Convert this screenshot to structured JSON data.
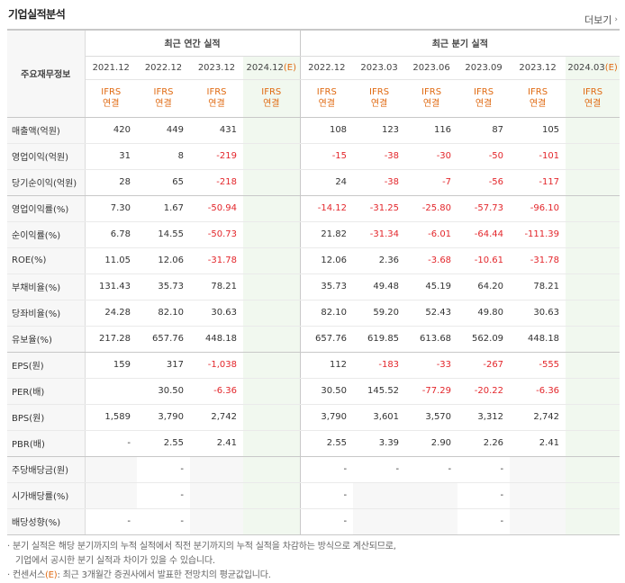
{
  "title": "기업실적분석",
  "more_label": "더보기",
  "header": {
    "row_label": "주요재무정보",
    "annual_label": "최근 연간 실적",
    "quarter_label": "최근 분기 실적",
    "annual_periods": [
      "2021.12",
      "2022.12",
      "2023.12",
      "2024.12"
    ],
    "annual_est_suffix": "(E)",
    "quarter_periods": [
      "2022.12",
      "2023.03",
      "2023.06",
      "2023.09",
      "2023.12",
      "2024.03"
    ],
    "quarter_est_suffix": "(E)",
    "ifrs_top": "IFRS",
    "ifrs_bottom": "연결"
  },
  "rows": [
    {
      "label": "매출액(억원)",
      "annual": [
        "420",
        "449",
        "431",
        ""
      ],
      "quarter": [
        "108",
        "123",
        "116",
        "87",
        "105",
        ""
      ]
    },
    {
      "label": "영업이익(억원)",
      "annual": [
        "31",
        "8",
        "-219",
        ""
      ],
      "quarter": [
        "-15",
        "-38",
        "-30",
        "-50",
        "-101",
        ""
      ]
    },
    {
      "label": "당기순이익(억원)",
      "annual": [
        "28",
        "65",
        "-218",
        ""
      ],
      "quarter": [
        "24",
        "-38",
        "-7",
        "-56",
        "-117",
        ""
      ]
    },
    {
      "label": "영업이익률(%)",
      "annual": [
        "7.30",
        "1.67",
        "-50.94",
        ""
      ],
      "quarter": [
        "-14.12",
        "-31.25",
        "-25.80",
        "-57.73",
        "-96.10",
        ""
      ]
    },
    {
      "label": "순이익률(%)",
      "annual": [
        "6.78",
        "14.55",
        "-50.73",
        ""
      ],
      "quarter": [
        "21.82",
        "-31.34",
        "-6.01",
        "-64.44",
        "-111.39",
        ""
      ]
    },
    {
      "label": "ROE(%)",
      "annual": [
        "11.05",
        "12.06",
        "-31.78",
        ""
      ],
      "quarter": [
        "12.06",
        "2.36",
        "-3.68",
        "-10.61",
        "-31.78",
        ""
      ]
    },
    {
      "label": "부채비율(%)",
      "annual": [
        "131.43",
        "35.73",
        "78.21",
        ""
      ],
      "quarter": [
        "35.73",
        "49.48",
        "45.19",
        "64.20",
        "78.21",
        ""
      ]
    },
    {
      "label": "당좌비율(%)",
      "annual": [
        "24.28",
        "82.10",
        "30.63",
        ""
      ],
      "quarter": [
        "82.10",
        "59.20",
        "52.43",
        "49.80",
        "30.63",
        ""
      ]
    },
    {
      "label": "유보율(%)",
      "annual": [
        "217.28",
        "657.76",
        "448.18",
        ""
      ],
      "quarter": [
        "657.76",
        "619.85",
        "613.68",
        "562.09",
        "448.18",
        ""
      ]
    },
    {
      "label": "EPS(원)",
      "annual": [
        "159",
        "317",
        "-1,038",
        ""
      ],
      "quarter": [
        "112",
        "-183",
        "-33",
        "-267",
        "-555",
        ""
      ]
    },
    {
      "label": "PER(배)",
      "annual": [
        "",
        "30.50",
        "-6.36",
        ""
      ],
      "quarter": [
        "30.50",
        "145.52",
        "-77.29",
        "-20.22",
        "-6.36",
        ""
      ]
    },
    {
      "label": "BPS(원)",
      "annual": [
        "1,589",
        "3,790",
        "2,742",
        ""
      ],
      "quarter": [
        "3,790",
        "3,601",
        "3,570",
        "3,312",
        "2,742",
        ""
      ]
    },
    {
      "label": "PBR(배)",
      "annual": [
        "-",
        "2.55",
        "2.41",
        ""
      ],
      "quarter": [
        "2.55",
        "3.39",
        "2.90",
        "2.26",
        "2.41",
        ""
      ]
    },
    {
      "label": "주당배당금(원)",
      "annual": [
        "",
        "-",
        "",
        ""
      ],
      "quarter": [
        "-",
        "-",
        "-",
        "-",
        "",
        ""
      ]
    },
    {
      "label": "시가배당률(%)",
      "annual": [
        "",
        "-",
        "",
        ""
      ],
      "quarter": [
        "-",
        "",
        "",
        "-",
        "",
        ""
      ]
    },
    {
      "label": "배당성향(%)",
      "annual": [
        "-",
        "-",
        "",
        ""
      ],
      "quarter": [
        "-",
        "",
        "",
        "-",
        "",
        ""
      ]
    }
  ],
  "notes": {
    "line1": "· 분기 실적은 해당 분기까지의 누적 실적에서 직전 분기까지의 누적 실적을 차감하는 방식으로 계산되므로,",
    "line2": "기업에서 공시한 분기 실적과 차이가 있을 수 있습니다.",
    "line3_prefix": "· 컨센서스",
    "line3_mark": "(E)",
    "line3_suffix": ": 최근 3개월간 증권사에서 발표한 전망치의 평균값입니다."
  },
  "colors": {
    "negative": "#e3262b",
    "ifrs": "#e06a12",
    "estimate_bg": "#f1f8ef",
    "label_bg": "#f7f7f7"
  }
}
